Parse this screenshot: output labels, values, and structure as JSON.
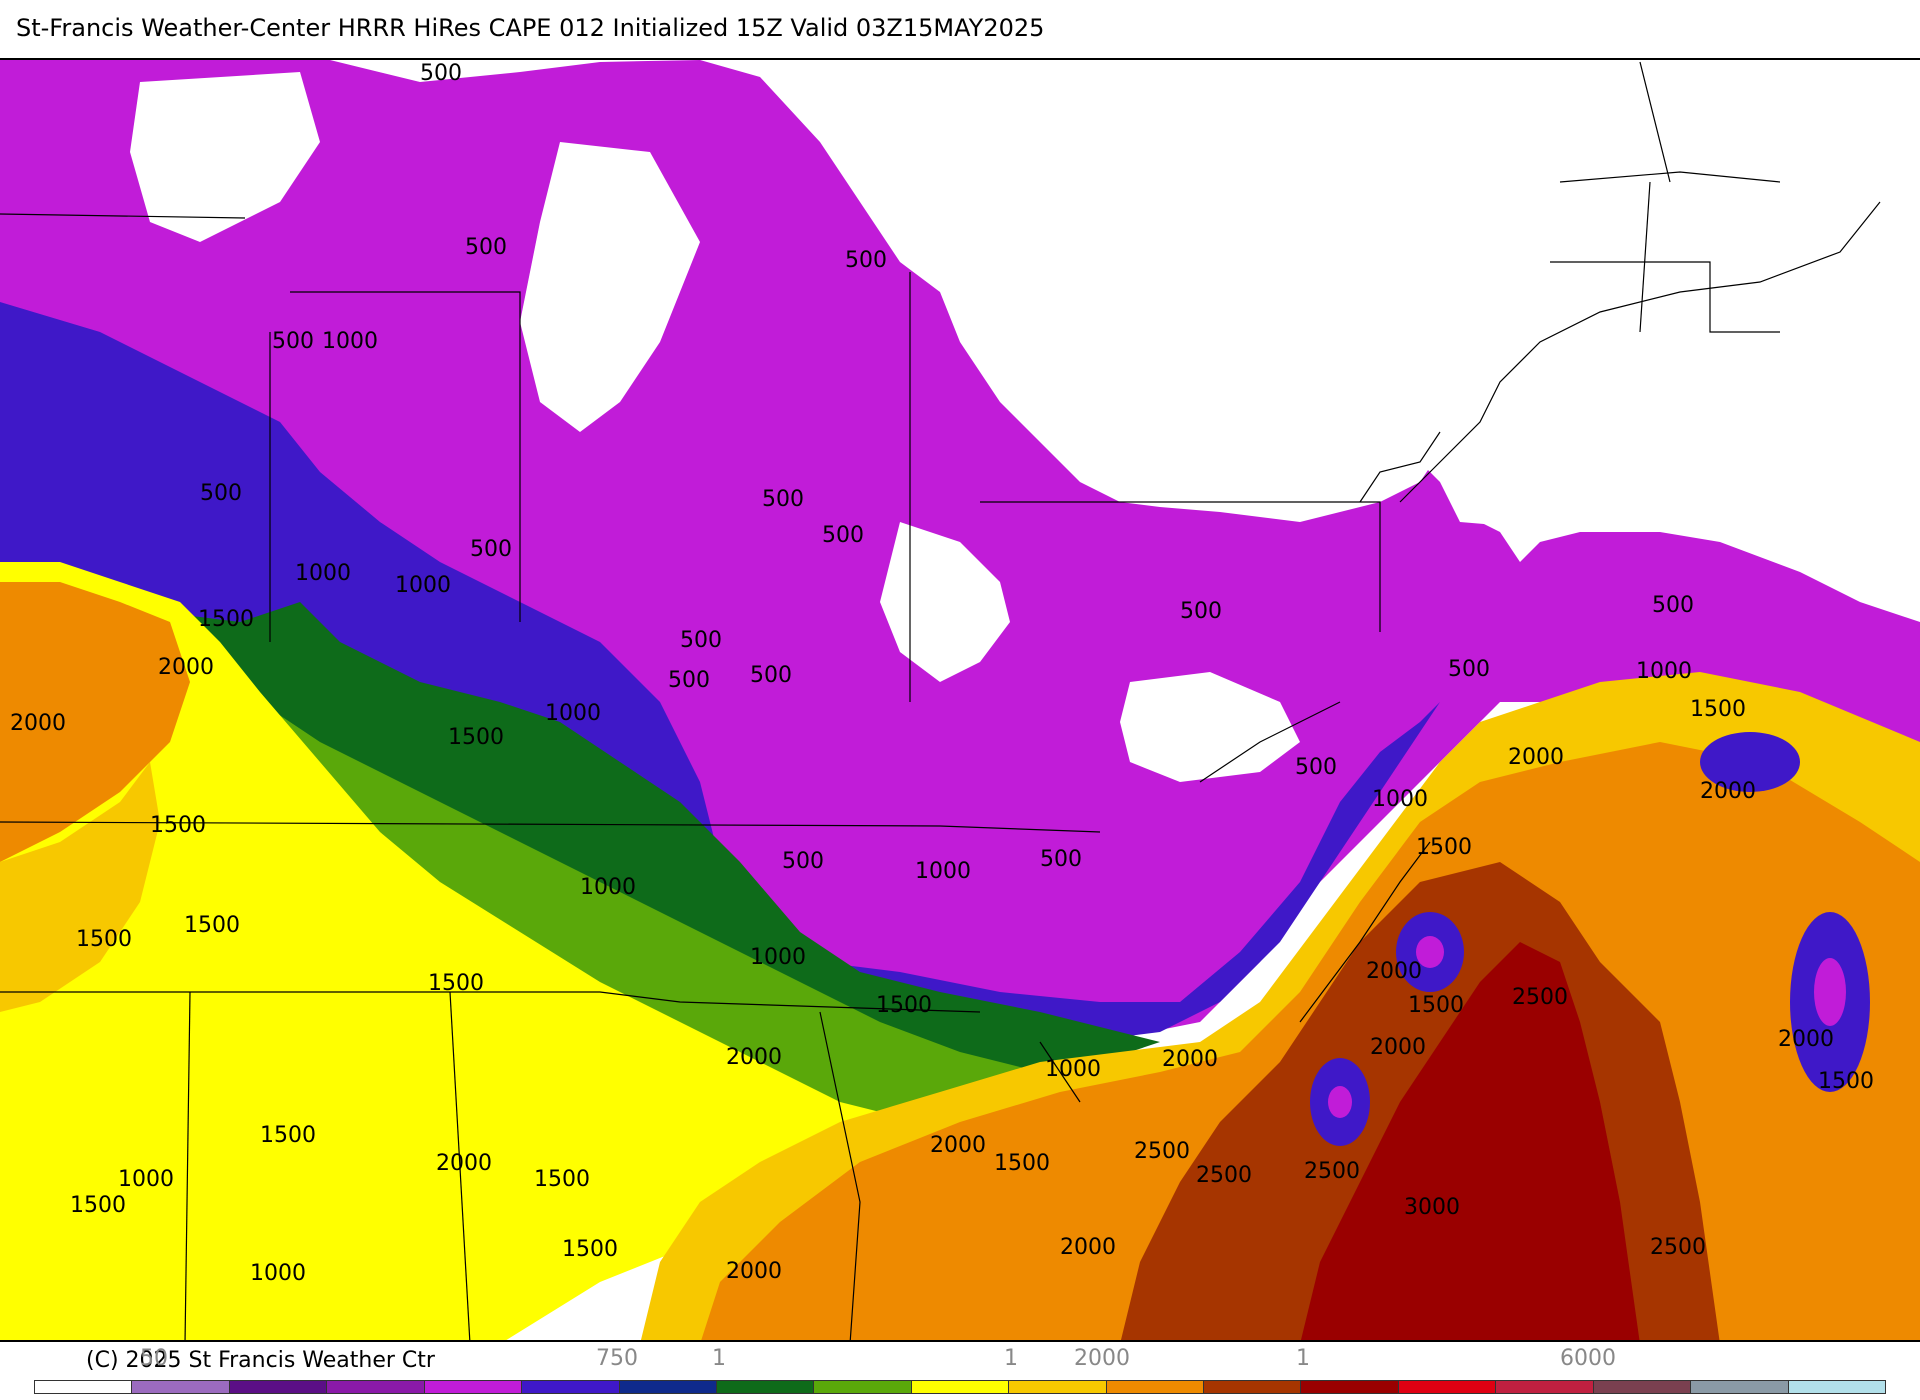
{
  "header": {
    "title": "St-Francis Weather-Center HRRR HiRes CAPE  012 Initialized  15Z Valid 03Z15MAY2025"
  },
  "footer": {
    "copyright": "(C) 2025 St Francis Weather Ctr",
    "tick_labels": [
      "50",
      "750",
      "1",
      "1",
      "2000",
      "1",
      "6000"
    ]
  },
  "colorbar": {
    "colors": [
      "#ffffff",
      "#9b6bbf",
      "#5b0f86",
      "#8a1aa8",
      "#c11cd8",
      "#3f18c8",
      "#0f2a8c",
      "#0e6b1a",
      "#5aa80a",
      "#ffff00",
      "#f7c800",
      "#ee8a00",
      "#a63500",
      "#9a0000",
      "#e00012",
      "#c02040",
      "#7a4050",
      "#8a9aa6",
      "#b2e0ea"
    ]
  },
  "map": {
    "contour_labels": [
      "500",
      "500",
      "500",
      "500",
      "500",
      "500",
      "500",
      "500",
      "500",
      "500",
      "500",
      "500",
      "500",
      "500",
      "500",
      "500",
      "500",
      "1000",
      "1000",
      "1000",
      "1000",
      "1000",
      "1000",
      "1000",
      "1000",
      "1000",
      "1000",
      "1000",
      "1000",
      "1500",
      "1500",
      "1500",
      "1500",
      "1500",
      "1500",
      "1500",
      "1500",
      "1500",
      "1500",
      "1500",
      "1500",
      "1500",
      "1500",
      "1500",
      "1500",
      "2000",
      "2000",
      "2000",
      "2000",
      "2000",
      "2000",
      "2000",
      "2000",
      "2000",
      "2000",
      "2000",
      "2000",
      "2000",
      "2500",
      "2500",
      "2500",
      "2500",
      "2500",
      "3000"
    ]
  }
}
